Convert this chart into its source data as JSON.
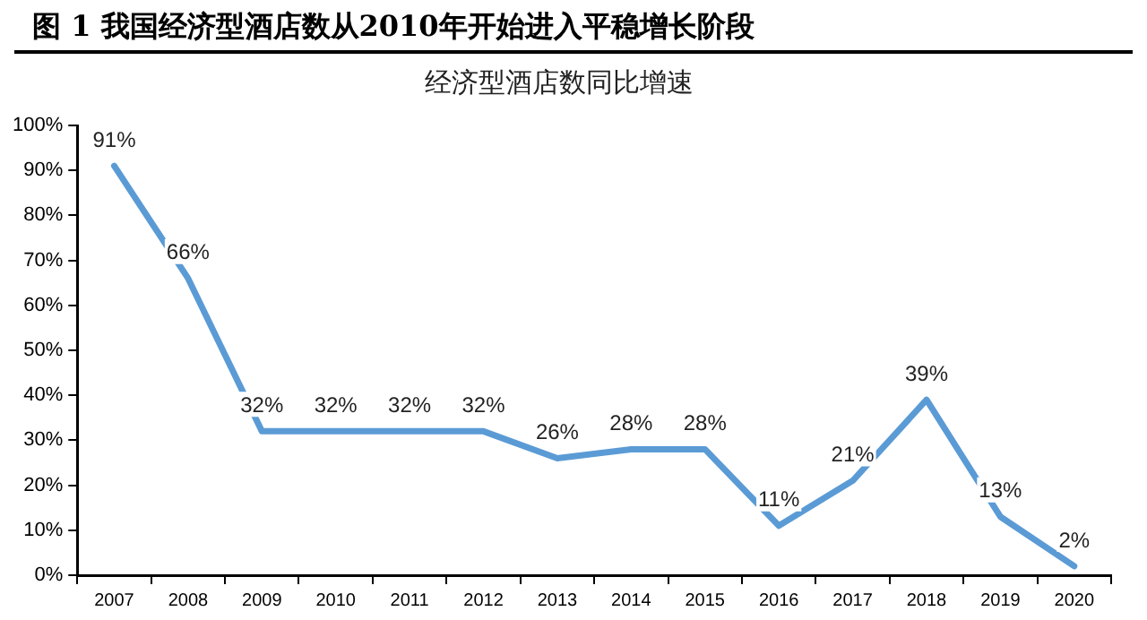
{
  "chart_data": {
    "type": "line",
    "title": "图 1 我国经济型酒店数从2010年开始进入平稳增长阶段",
    "subtitle": "经济型酒店数同比增速",
    "categories": [
      "2007",
      "2008",
      "2009",
      "2010",
      "2011",
      "2012",
      "2013",
      "2014",
      "2015",
      "2016",
      "2017",
      "2018",
      "2019",
      "2020"
    ],
    "series": [
      {
        "color": "#5b9bd5",
        "values": [
          91,
          66,
          32,
          32,
          32,
          32,
          26,
          28,
          28,
          11,
          21,
          39,
          13,
          2
        ],
        "value_labels": [
          "91%",
          "66%",
          "32%",
          "32%",
          "32%",
          "32%",
          "26%",
          "28%",
          "28%",
          "11%",
          "21%",
          "39%",
          "13%",
          "2%"
        ]
      }
    ],
    "ylim": [
      0,
      100
    ],
    "yticks": [
      {
        "value": 0,
        "label": "0%"
      },
      {
        "value": 10,
        "label": "10%"
      },
      {
        "value": 20,
        "label": "20%"
      },
      {
        "value": 30,
        "label": "30%"
      },
      {
        "value": 40,
        "label": "40%"
      },
      {
        "value": 50,
        "label": "50%"
      },
      {
        "value": 60,
        "label": "60%"
      },
      {
        "value": 70,
        "label": "70%"
      },
      {
        "value": 80,
        "label": "80%"
      },
      {
        "value": 90,
        "label": "90%"
      },
      {
        "value": 100,
        "label": "100%"
      }
    ],
    "grid": false,
    "legend": false,
    "marker": "none",
    "line_style": "solid"
  }
}
